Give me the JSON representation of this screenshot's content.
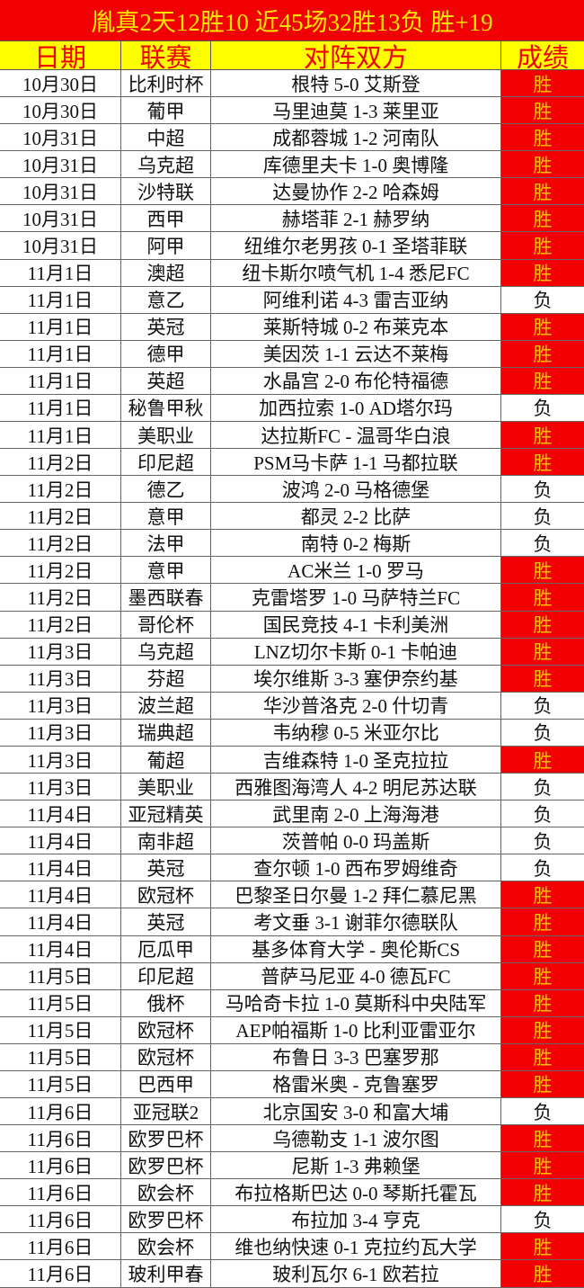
{
  "title": "胤真2天12胜10  近45场32胜13负  胜+19",
  "headers": [
    "日期",
    "联赛",
    "对阵双方",
    "成绩"
  ],
  "colors": {
    "title_bg": "#f00000",
    "title_text": "#ffe800",
    "header_bg": "#ffff00",
    "header_text": "#f00000",
    "win_bg": "#f00000",
    "win_text": "#ffc000",
    "loss_bg": "#ffffff",
    "loss_text": "#111111"
  },
  "rows": [
    [
      "10月30日",
      "比利时杯",
      "根特 5-0 艾斯登",
      "胜"
    ],
    [
      "10月30日",
      "葡甲",
      "马里迪莫 1-3 莱里亚",
      "胜"
    ],
    [
      "10月31日",
      "中超",
      "成都蓉城 1-2 河南队",
      "胜"
    ],
    [
      "10月31日",
      "乌克超",
      "库德里夫卡 1-0 奥博隆",
      "胜"
    ],
    [
      "10月31日",
      "沙特联",
      "达曼协作 2-2 哈森姆",
      "胜"
    ],
    [
      "10月31日",
      "西甲",
      "赫塔菲 2-1 赫罗纳",
      "胜"
    ],
    [
      "10月31日",
      "阿甲",
      "纽维尔老男孩 0-1 圣塔菲联",
      "胜"
    ],
    [
      "11月1日",
      "澳超",
      "纽卡斯尔喷气机 1-4 悉尼FC",
      "胜"
    ],
    [
      "11月1日",
      "意乙",
      "阿维利诺 4-3 雷吉亚纳",
      "负"
    ],
    [
      "11月1日",
      "英冠",
      "莱斯特城 0-2 布莱克本",
      "胜"
    ],
    [
      "11月1日",
      "德甲",
      "美因茨 1-1 云达不莱梅",
      "胜"
    ],
    [
      "11月1日",
      "英超",
      "水晶宫 2-0 布伦特福德",
      "胜"
    ],
    [
      "11月1日",
      "秘鲁甲秋",
      "加西拉索 1-0 AD塔尔玛",
      "负"
    ],
    [
      "11月1日",
      "美职业",
      "达拉斯FC - 温哥华白浪",
      "胜"
    ],
    [
      "11月2日",
      "印尼超",
      "PSM马卡萨 1-1 马都拉联",
      "胜"
    ],
    [
      "11月2日",
      "德乙",
      "波鸿 2-0 马格德堡",
      "负"
    ],
    [
      "11月2日",
      "意甲",
      "都灵 2-2 比萨",
      "负"
    ],
    [
      "11月2日",
      "法甲",
      "南特 0-2 梅斯",
      "负"
    ],
    [
      "11月2日",
      "意甲",
      "AC米兰 1-0 罗马",
      "胜"
    ],
    [
      "11月2日",
      "墨西联春",
      "克雷塔罗 1-0 马萨特兰FC",
      "胜"
    ],
    [
      "11月2日",
      "哥伦杯",
      "国民竞技 4-1 卡利美洲",
      "胜"
    ],
    [
      "11月3日",
      "乌克超",
      "LNZ切尔卡斯 0-1 卡帕迪",
      "胜"
    ],
    [
      "11月3日",
      "芬超",
      "埃尔维斯 3-3 塞伊奈约基",
      "胜"
    ],
    [
      "11月3日",
      "波兰超",
      "华沙普洛克 2-0 什切青",
      "负"
    ],
    [
      "11月3日",
      "瑞典超",
      "韦纳穆 0-5 米亚尔比",
      "负"
    ],
    [
      "11月3日",
      "葡超",
      "吉维森特 1-0 圣克拉拉",
      "胜"
    ],
    [
      "11月3日",
      "美职业",
      "西雅图海湾人 4-2 明尼苏达联",
      "负"
    ],
    [
      "11月4日",
      "亚冠精英",
      "武里南 2-0 上海海港",
      "负"
    ],
    [
      "11月4日",
      "南非超",
      "茨普帕 0-0 玛盖斯",
      "负"
    ],
    [
      "11月4日",
      "英冠",
      "查尔顿 1-0 西布罗姆维奇",
      "负"
    ],
    [
      "11月4日",
      "欧冠杯",
      "巴黎圣日尔曼 1-2 拜仁慕尼黑",
      "胜"
    ],
    [
      "11月4日",
      "英冠",
      "考文垂 3-1 谢菲尔德联队",
      "胜"
    ],
    [
      "11月4日",
      "厄瓜甲",
      "基多体育大学 - 奥伦斯CS",
      "胜"
    ],
    [
      "11月5日",
      "印尼超",
      "普萨马尼亚 4-0 德瓦FC",
      "胜"
    ],
    [
      "11月5日",
      "俄杯",
      "马哈奇卡拉 1-0 莫斯科中央陆军",
      "胜"
    ],
    [
      "11月5日",
      "欧冠杯",
      "AEP帕福斯 1-0 比利亚雷亚尔",
      "胜"
    ],
    [
      "11月5日",
      "欧冠杯",
      "布鲁日 3-3 巴塞罗那",
      "胜"
    ],
    [
      "11月5日",
      "巴西甲",
      "格雷米奥 - 克鲁塞罗",
      "胜"
    ],
    [
      "11月6日",
      "亚冠联2",
      "北京国安 3-0 和富大埔",
      "负"
    ],
    [
      "11月6日",
      "欧罗巴杯",
      "乌德勒支 1-1 波尔图",
      "胜"
    ],
    [
      "11月6日",
      "欧罗巴杯",
      "尼斯 1-3 弗赖堡",
      "胜"
    ],
    [
      "11月6日",
      "欧会杯",
      "布拉格斯巴达 0-0 琴斯托霍瓦",
      "胜"
    ],
    [
      "11月6日",
      "欧罗巴杯",
      "布拉加 3-4 亨克",
      "负"
    ],
    [
      "11月6日",
      "欧会杯",
      "维也纳快速 0-1 克拉约瓦大学",
      "胜"
    ],
    [
      "11月6日",
      "玻利甲春",
      "玻利瓦尔 6-1 欧若拉",
      "胜"
    ]
  ]
}
